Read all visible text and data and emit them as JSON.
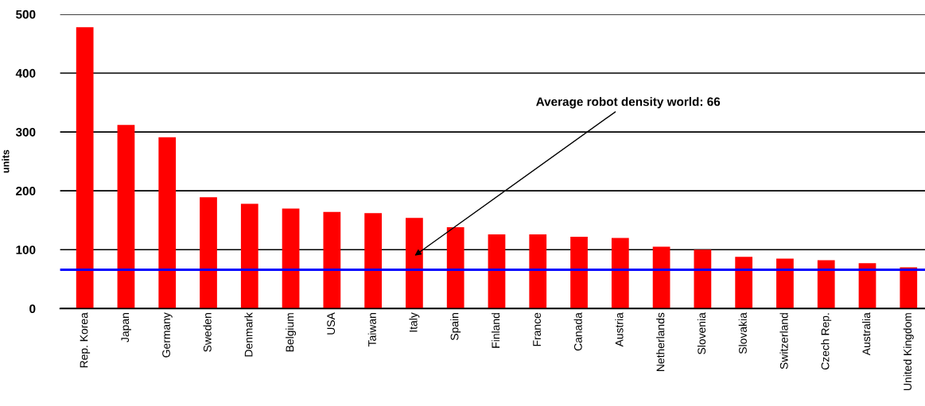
{
  "chart_data": {
    "type": "bar",
    "ylabel": "units",
    "categories": [
      "Rep. Korea",
      "Japan",
      "Germany",
      "Sweden",
      "Denmark",
      "Belgium",
      "USA",
      "Taiwan",
      "Italy",
      "Spain",
      "Finland",
      "France",
      "Canada",
      "Austria",
      "Netherlands",
      "Slovenia",
      "Slovakia",
      "Switzerland",
      "Czech Rep.",
      "Australia",
      "United Kingdom"
    ],
    "values": [
      478,
      312,
      291,
      189,
      178,
      170,
      164,
      162,
      154,
      138,
      126,
      126,
      122,
      120,
      105,
      100,
      88,
      85,
      82,
      77,
      70
    ],
    "color": "#ff0000",
    "ylim": [
      0,
      500
    ],
    "yticks": [
      0,
      100,
      200,
      300,
      400,
      500
    ],
    "grid": "y",
    "ref_lines": [
      {
        "axis": "y",
        "value": 66,
        "color": "#0000ff",
        "line_style": "solid"
      }
    ],
    "annotations": [
      "Average robot density world: 66"
    ]
  }
}
